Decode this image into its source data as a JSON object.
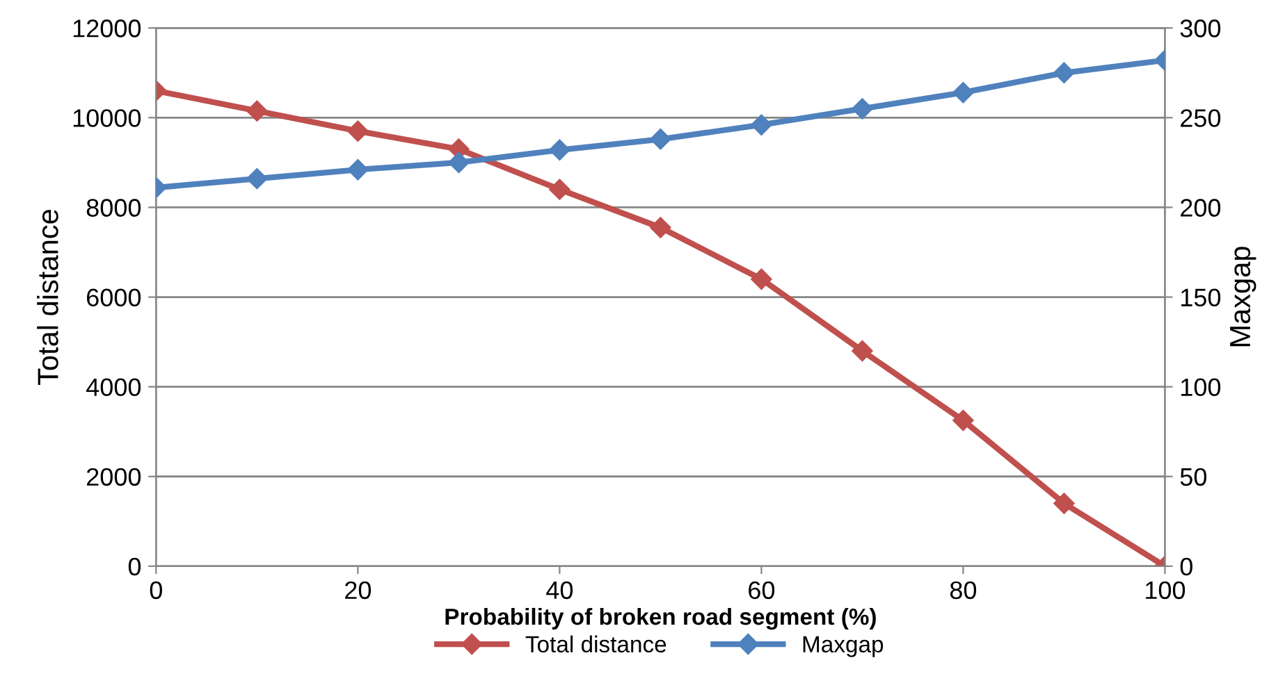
{
  "chart_data": {
    "type": "line",
    "xlabel": "Probability of broken road segment (%)",
    "ylabel": "Total distance",
    "y2label": "Maxgap",
    "x": [
      0,
      10,
      20,
      30,
      40,
      50,
      60,
      70,
      80,
      90,
      100
    ],
    "series": [
      {
        "name": "Total distance",
        "color": "#c0504d",
        "values": [
          10600,
          10150,
          9700,
          9300,
          8400,
          7550,
          6400,
          4800,
          3250,
          1400,
          0
        ]
      },
      {
        "name": "Maxgap",
        "color": "#4f81bd",
        "axis": "y2",
        "values": [
          211,
          216,
          221,
          225,
          232,
          238,
          246,
          255,
          264,
          275,
          282
        ]
      }
    ],
    "xlim": [
      0,
      100
    ],
    "xticks": [
      0,
      20,
      40,
      60,
      80,
      100
    ],
    "ylim": [
      0,
      12000
    ],
    "yticks": [
      0,
      2000,
      4000,
      6000,
      8000,
      10000,
      12000
    ],
    "y2lim": [
      0,
      300
    ],
    "y2ticks": [
      0,
      50,
      100,
      150,
      200,
      250,
      300
    ],
    "grid": "y",
    "legend": "bottom",
    "marker": "diamond",
    "line_style": "solid"
  }
}
